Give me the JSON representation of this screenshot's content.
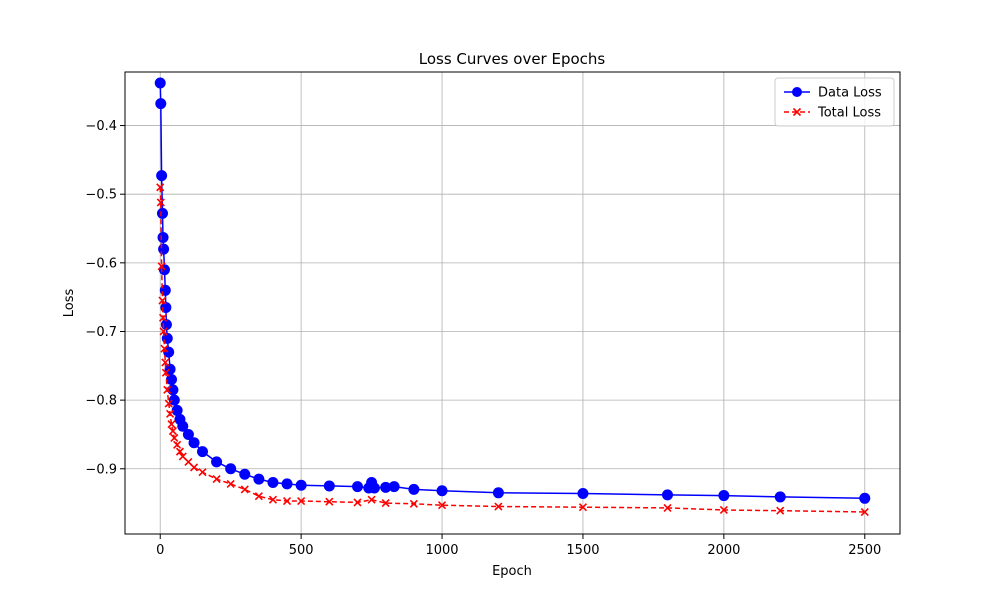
{
  "chart_data": {
    "type": "line",
    "title": "Loss Curves over Epochs",
    "xlabel": "Epoch",
    "ylabel": "Loss",
    "xlim": [
      -125,
      2625
    ],
    "ylim": [
      -0.995,
      -0.322
    ],
    "x_ticks": [
      0,
      500,
      1000,
      1500,
      2000,
      2500
    ],
    "y_ticks": [
      -0.4,
      -0.5,
      -0.6,
      -0.7,
      -0.8,
      -0.9
    ],
    "x_tick_labels": [
      "0",
      "500",
      "1000",
      "1500",
      "2000",
      "2500"
    ],
    "y_tick_labels": [
      "−0.4",
      "−0.5",
      "−0.6",
      "−0.7",
      "−0.8",
      "−0.9"
    ],
    "grid": true,
    "legend_position": "top-right",
    "series": [
      {
        "name": "Data Loss",
        "color": "#0000ff",
        "marker": "circle",
        "linestyle": "solid",
        "x": [
          0,
          2,
          5,
          8,
          10,
          12,
          15,
          18,
          20,
          22,
          25,
          30,
          35,
          40,
          45,
          50,
          60,
          70,
          80,
          100,
          120,
          150,
          200,
          250,
          300,
          350,
          400,
          450,
          500,
          600,
          700,
          740,
          750,
          760,
          800,
          830,
          900,
          1000,
          1200,
          1500,
          1800,
          2000,
          2200,
          2500
        ],
        "y": [
          -0.338,
          -0.368,
          -0.473,
          -0.528,
          -0.563,
          -0.58,
          -0.61,
          -0.64,
          -0.665,
          -0.69,
          -0.71,
          -0.73,
          -0.755,
          -0.77,
          -0.785,
          -0.8,
          -0.815,
          -0.828,
          -0.838,
          -0.85,
          -0.862,
          -0.875,
          -0.89,
          -0.9,
          -0.908,
          -0.915,
          -0.92,
          -0.922,
          -0.924,
          -0.925,
          -0.926,
          -0.928,
          -0.92,
          -0.928,
          -0.927,
          -0.926,
          -0.93,
          -0.932,
          -0.935,
          -0.936,
          -0.938,
          -0.939,
          -0.941,
          -0.943
        ]
      },
      {
        "name": "Total Loss",
        "color": "#ff0000",
        "marker": "x",
        "linestyle": "dashed",
        "x": [
          0,
          2,
          5,
          8,
          10,
          12,
          15,
          18,
          20,
          25,
          30,
          35,
          40,
          45,
          50,
          60,
          70,
          80,
          100,
          120,
          150,
          200,
          250,
          300,
          350,
          400,
          450,
          500,
          600,
          700,
          750,
          800,
          900,
          1000,
          1200,
          1500,
          1800,
          2000,
          2200,
          2500
        ],
        "y": [
          -0.49,
          -0.512,
          -0.605,
          -0.655,
          -0.68,
          -0.7,
          -0.725,
          -0.745,
          -0.76,
          -0.785,
          -0.805,
          -0.82,
          -0.835,
          -0.845,
          -0.855,
          -0.865,
          -0.875,
          -0.882,
          -0.89,
          -0.898,
          -0.905,
          -0.915,
          -0.922,
          -0.93,
          -0.94,
          -0.945,
          -0.947,
          -0.947,
          -0.948,
          -0.949,
          -0.945,
          -0.95,
          -0.951,
          -0.953,
          -0.955,
          -0.956,
          -0.957,
          -0.96,
          -0.961,
          -0.963
        ]
      }
    ]
  }
}
